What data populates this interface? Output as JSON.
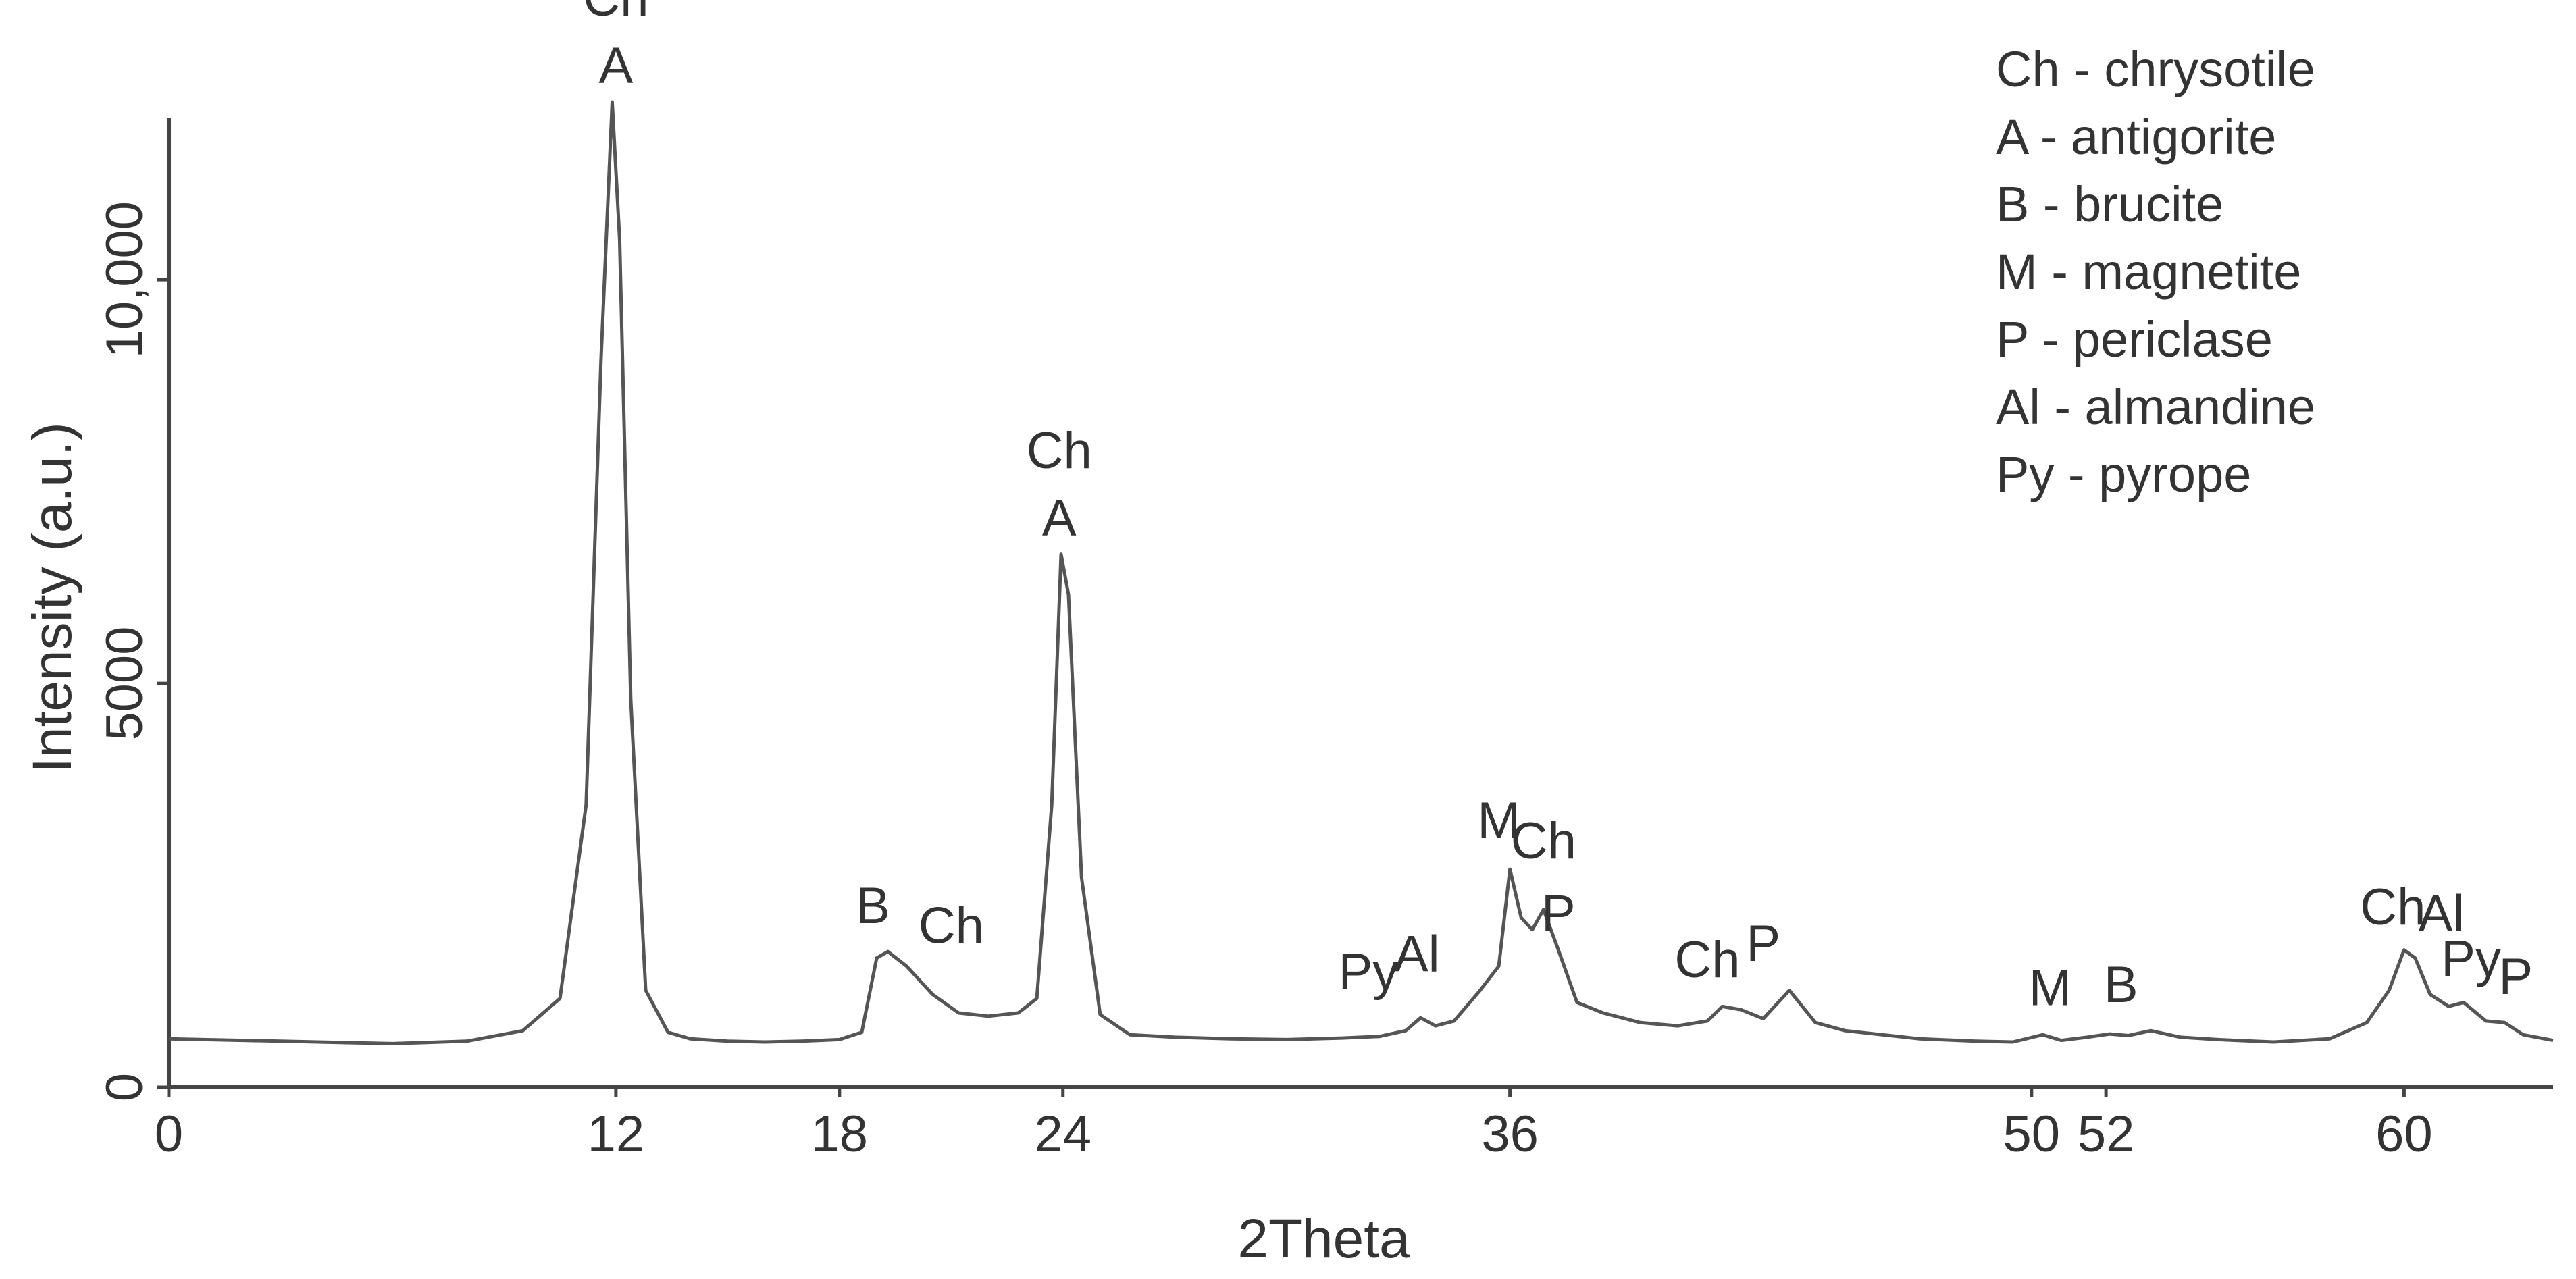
{
  "chart_data": {
    "type": "line",
    "title": "",
    "xlabel": "2Theta",
    "ylabel": "Intensity (a.u.)",
    "xlim": [
      0,
      64
    ],
    "ylim": [
      0,
      12000
    ],
    "grid": false,
    "legend_position": "top-right",
    "line_color": "#555555",
    "x_ticks": [
      {
        "value": 0,
        "label": "0"
      },
      {
        "value": 12,
        "label": "12"
      },
      {
        "value": 18,
        "label": "18"
      },
      {
        "value": 24,
        "label": "24"
      },
      {
        "value": 36,
        "label": "36"
      },
      {
        "value": 50,
        "label": "50"
      },
      {
        "value": 52,
        "label": "52"
      },
      {
        "value": 60,
        "label": "60"
      }
    ],
    "y_ticks": [
      {
        "value": 0,
        "label": "0"
      },
      {
        "value": 5000,
        "label": "5000"
      },
      {
        "value": 10000,
        "label": "10,000"
      }
    ],
    "series": [
      {
        "x": [
          0,
          2,
          4,
          6,
          8,
          9.5,
          10.5,
          11.2,
          11.6,
          11.9,
          12.1,
          12.4,
          12.8,
          13.4,
          14,
          15,
          16,
          17,
          18,
          18.6,
          19.0,
          19.3,
          19.8,
          20.5,
          21.2,
          22,
          22.8,
          23.3,
          23.7,
          23.95,
          24.15,
          24.5,
          25,
          25.8,
          27,
          28.5,
          30,
          31.5,
          32.5,
          33.2,
          33.6,
          34,
          34.5,
          35.2,
          35.7,
          36.0,
          36.3,
          36.6,
          36.9,
          37.3,
          37.8,
          38.5,
          39.5,
          40.5,
          41.3,
          41.7,
          42.2,
          42.8,
          43.5,
          44.2,
          45,
          46,
          47,
          48.5,
          49.5,
          50.3,
          50.8,
          51.5,
          52.1,
          52.6,
          53.2,
          54,
          55,
          56.5,
          58,
          59,
          59.6,
          60.0,
          60.3,
          60.7,
          61.2,
          61.6,
          62.2,
          62.7,
          63.2,
          64
        ],
        "y": [
          600,
          580,
          560,
          540,
          570,
          700,
          1100,
          3500,
          9000,
          12200,
          10500,
          4800,
          1200,
          680,
          600,
          570,
          560,
          570,
          590,
          680,
          1600,
          1680,
          1500,
          1150,
          920,
          880,
          920,
          1100,
          3500,
          6600,
          6100,
          2600,
          900,
          650,
          620,
          600,
          590,
          610,
          630,
          700,
          860,
          760,
          820,
          1200,
          1500,
          2700,
          2100,
          1950,
          2200,
          1700,
          1050,
          920,
          800,
          760,
          820,
          1000,
          960,
          850,
          1200,
          800,
          700,
          650,
          600,
          570,
          560,
          650,
          580,
          620,
          660,
          640,
          700,
          620,
          590,
          560,
          600,
          800,
          1200,
          1700,
          1600,
          1150,
          1000,
          1050,
          820,
          800,
          650,
          580
        ]
      }
    ],
    "annotations": [
      {
        "x": 12.0,
        "y": 12200,
        "labels": [
          "Ch",
          "A"
        ]
      },
      {
        "x": 23.9,
        "y": 6600,
        "labels": [
          "Ch",
          "A"
        ]
      },
      {
        "x": 18.9,
        "y": 1800,
        "labels": [
          "B"
        ]
      },
      {
        "x": 21.0,
        "y": 1550,
        "labels": [
          "Ch"
        ]
      },
      {
        "x": 32.2,
        "y": 980,
        "labels": [
          "Py"
        ]
      },
      {
        "x": 33.5,
        "y": 1200,
        "labels": [
          "Al"
        ]
      },
      {
        "x": 35.7,
        "y": 2850,
        "labels": [
          "M"
        ]
      },
      {
        "x": 36.9,
        "y": 2600,
        "labels": [
          "Ch"
        ]
      },
      {
        "x": 37.3,
        "y": 1700,
        "labels": [
          "P"
        ]
      },
      {
        "x": 41.3,
        "y": 1130,
        "labels": [
          "Ch"
        ]
      },
      {
        "x": 42.8,
        "y": 1330,
        "labels": [
          "P"
        ]
      },
      {
        "x": 50.5,
        "y": 780,
        "labels": [
          "M"
        ]
      },
      {
        "x": 52.4,
        "y": 820,
        "labels": [
          "B"
        ]
      },
      {
        "x": 59.7,
        "y": 1780,
        "labels": [
          "Ch"
        ]
      },
      {
        "x": 61.0,
        "y": 1700,
        "labels": [
          "Al"
        ]
      },
      {
        "x": 61.8,
        "y": 1140,
        "labels": [
          "Py"
        ]
      },
      {
        "x": 63.0,
        "y": 920,
        "labels": [
          "P"
        ]
      }
    ],
    "legend": [
      "Ch - chrysotile",
      "A - antigorite",
      "B - brucite",
      "M - magnetite",
      "P - periclase",
      "Al - almandine",
      "Py - pyrope"
    ]
  }
}
